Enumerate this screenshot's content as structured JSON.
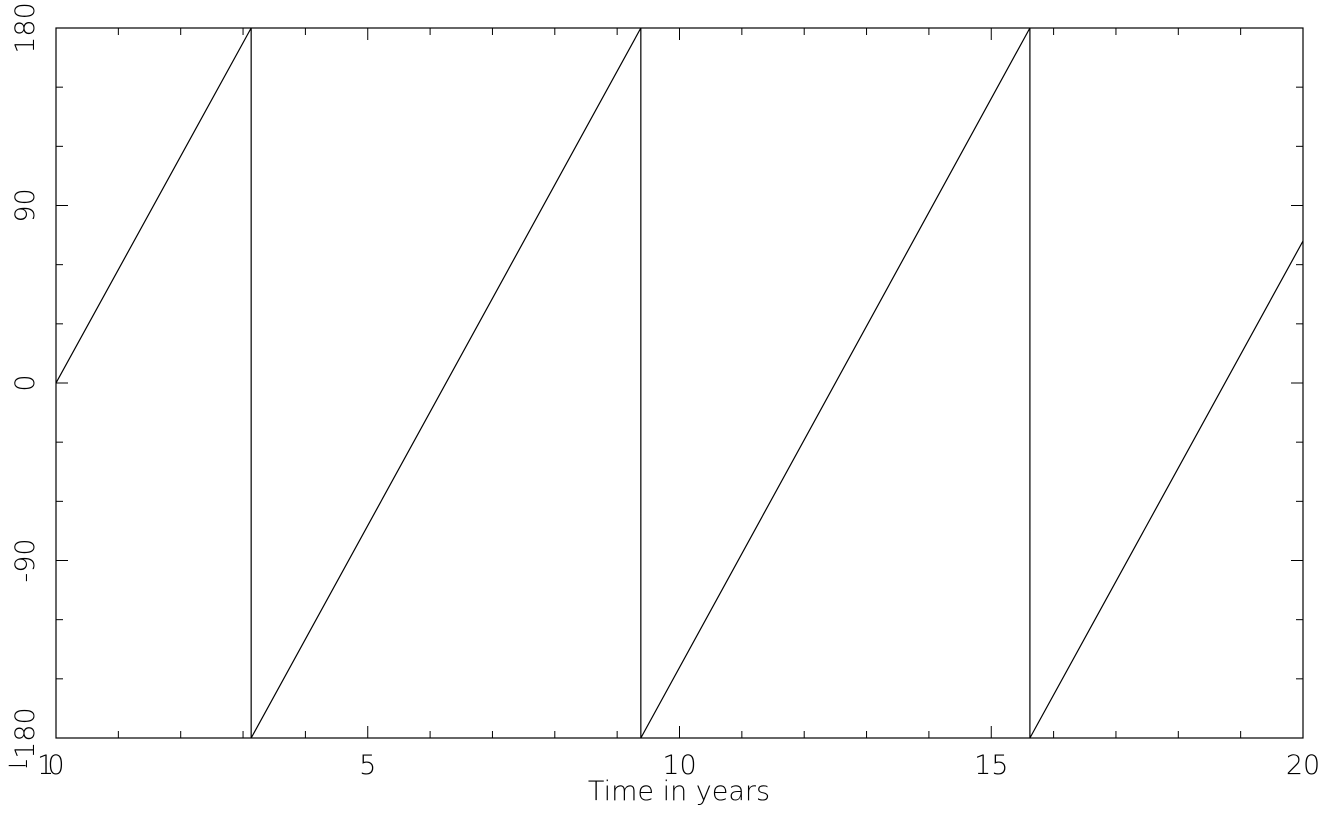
{
  "chart_data": {
    "type": "line",
    "xlabel": "Time in years",
    "ylabel": "",
    "xlim": [
      0,
      20
    ],
    "ylim": [
      -180,
      180
    ],
    "x_ticks": [
      0,
      5,
      10,
      15,
      20
    ],
    "x_tick_labels": [
      "0",
      "5",
      "10",
      "15",
      "20"
    ],
    "y_ticks": [
      -180,
      -90,
      0,
      90,
      180
    ],
    "y_tick_labels": [
      "-180",
      "-90",
      "0",
      "90",
      "180"
    ],
    "x_minor_step": 1,
    "y_minor_step": 30,
    "grid": false,
    "legend": "none",
    "line_color": "#000000",
    "series": [
      {
        "x": [
          0,
          3.13,
          3.13,
          9.38,
          9.38,
          15.62,
          15.62,
          20
        ],
        "y": [
          0,
          180,
          -180,
          180,
          -180,
          180,
          -180,
          72
        ]
      }
    ],
    "stray_label": "− 1"
  }
}
